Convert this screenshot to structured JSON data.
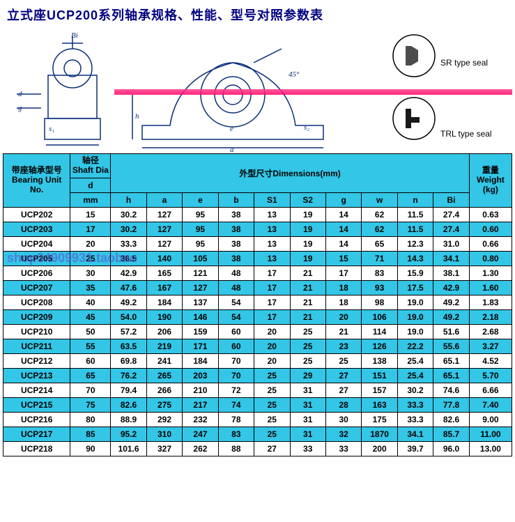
{
  "title": "立式座UCP200系列轴承规格、性能、型号对照参数表",
  "seal_labels": {
    "sr": "SR type seal",
    "trl": "TRL type seal"
  },
  "watermark": "shop34909931.taobao",
  "table": {
    "headers": {
      "bearing_unit": "带座轴承型号\nBearing Unit\nNo.",
      "shaft_dia": "轴径\nShaft Dia\nd",
      "shaft_unit": "mm",
      "dimensions": "外型尺寸Dimensions(mm)",
      "dim_cols": [
        "h",
        "a",
        "e",
        "b",
        "S1",
        "S2",
        "g",
        "w",
        "n",
        "Bi"
      ],
      "weight": "重量\nWeight\n(kg)"
    },
    "rows": [
      {
        "no": "UCP202",
        "d": "15",
        "dims": [
          "30.2",
          "127",
          "95",
          "38",
          "13",
          "19",
          "14",
          "62",
          "11.5",
          "27.4"
        ],
        "wt": "0.63"
      },
      {
        "no": "UCP203",
        "d": "17",
        "dims": [
          "30.2",
          "127",
          "95",
          "38",
          "13",
          "19",
          "14",
          "62",
          "11.5",
          "27.4"
        ],
        "wt": "0.60"
      },
      {
        "no": "UCP204",
        "d": "20",
        "dims": [
          "33.3",
          "127",
          "95",
          "38",
          "13",
          "19",
          "14",
          "65",
          "12.3",
          "31.0"
        ],
        "wt": "0.66"
      },
      {
        "no": "UCP205",
        "d": "25",
        "dims": [
          "36.5",
          "140",
          "105",
          "38",
          "13",
          "19",
          "15",
          "71",
          "14.3",
          "34.1"
        ],
        "wt": "0.80"
      },
      {
        "no": "UCP206",
        "d": "30",
        "dims": [
          "42.9",
          "165",
          "121",
          "48",
          "17",
          "21",
          "17",
          "83",
          "15.9",
          "38.1"
        ],
        "wt": "1.30"
      },
      {
        "no": "UCP207",
        "d": "35",
        "dims": [
          "47.6",
          "167",
          "127",
          "48",
          "17",
          "21",
          "18",
          "93",
          "17.5",
          "42.9"
        ],
        "wt": "1.60"
      },
      {
        "no": "UCP208",
        "d": "40",
        "dims": [
          "49.2",
          "184",
          "137",
          "54",
          "17",
          "21",
          "18",
          "98",
          "19.0",
          "49.2"
        ],
        "wt": "1.83"
      },
      {
        "no": "UCP209",
        "d": "45",
        "dims": [
          "54.0",
          "190",
          "146",
          "54",
          "17",
          "21",
          "20",
          "106",
          "19.0",
          "49.2"
        ],
        "wt": "2.18"
      },
      {
        "no": "UCP210",
        "d": "50",
        "dims": [
          "57.2",
          "206",
          "159",
          "60",
          "20",
          "25",
          "21",
          "114",
          "19.0",
          "51.6"
        ],
        "wt": "2.68"
      },
      {
        "no": "UCP211",
        "d": "55",
        "dims": [
          "63.5",
          "219",
          "171",
          "60",
          "20",
          "25",
          "23",
          "126",
          "22.2",
          "55.6"
        ],
        "wt": "3.27"
      },
      {
        "no": "UCP212",
        "d": "60",
        "dims": [
          "69.8",
          "241",
          "184",
          "70",
          "20",
          "25",
          "25",
          "138",
          "25.4",
          "65.1"
        ],
        "wt": "4.52"
      },
      {
        "no": "UCP213",
        "d": "65",
        "dims": [
          "76.2",
          "265",
          "203",
          "70",
          "25",
          "29",
          "27",
          "151",
          "25.4",
          "65.1"
        ],
        "wt": "5.70"
      },
      {
        "no": "UCP214",
        "d": "70",
        "dims": [
          "79.4",
          "266",
          "210",
          "72",
          "25",
          "31",
          "27",
          "157",
          "30.2",
          "74.6"
        ],
        "wt": "6.66"
      },
      {
        "no": "UCP215",
        "d": "75",
        "dims": [
          "82.6",
          "275",
          "217",
          "74",
          "25",
          "31",
          "28",
          "163",
          "33.3",
          "77.8"
        ],
        "wt": "7.40"
      },
      {
        "no": "UCP216",
        "d": "80",
        "dims": [
          "88.9",
          "292",
          "232",
          "78",
          "25",
          "31",
          "30",
          "175",
          "33.3",
          "82.6"
        ],
        "wt": "9.00"
      },
      {
        "no": "UCP217",
        "d": "85",
        "dims": [
          "95.2",
          "310",
          "247",
          "83",
          "25",
          "31",
          "32",
          "1870",
          "34.1",
          "85.7"
        ],
        "wt": "11.00"
      },
      {
        "no": "UCP218",
        "d": "90",
        "dims": [
          "101.6",
          "327",
          "262",
          "88",
          "27",
          "33",
          "33",
          "200",
          "39.7",
          "96.0"
        ],
        "wt": "13.00"
      }
    ]
  },
  "style": {
    "header_bg": "#33c6e6",
    "stripe_bg": "#33c6e6",
    "border_color": "#000000",
    "title_color": "#000080",
    "font_size_cell": 12,
    "diagram_stroke": "#0b2e7a"
  }
}
